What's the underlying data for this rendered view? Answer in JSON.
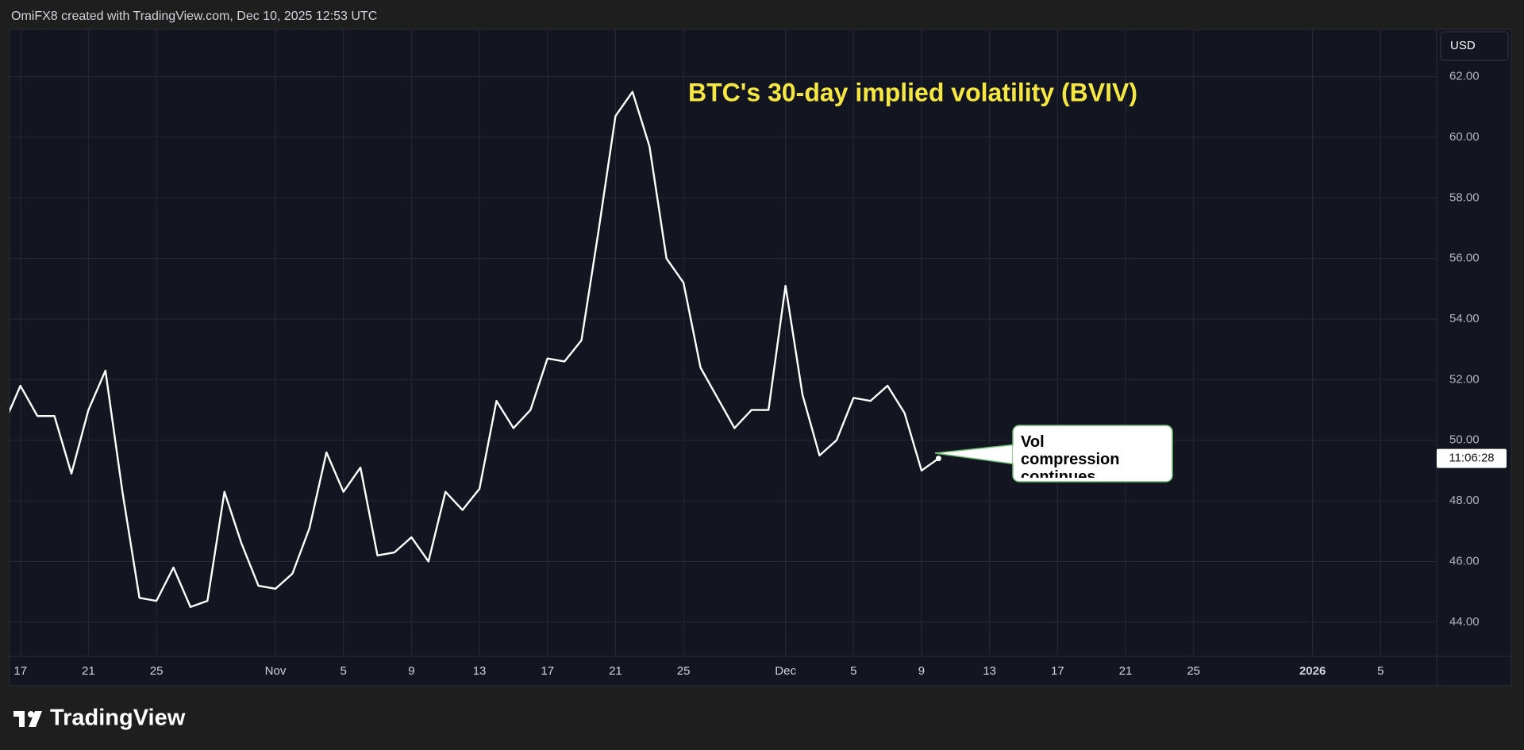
{
  "header": {
    "text": "OmiFX8 created with TradingView.com, Dec 10, 2025 12:53 UTC"
  },
  "footer": {
    "brand": "TradingView"
  },
  "chart_data": {
    "type": "line",
    "title": "BTC's 30-day implied volatility (BVIV)",
    "annotation": "Vol compression continues",
    "currency": "USD",
    "countdown": "11:06:28",
    "color": "#ffffff",
    "grid": true,
    "x": [
      "2025-10-16",
      "2025-10-17",
      "2025-10-18",
      "2025-10-19",
      "2025-10-20",
      "2025-10-21",
      "2025-10-22",
      "2025-10-23",
      "2025-10-24",
      "2025-10-25",
      "2025-10-26",
      "2025-10-27",
      "2025-10-28",
      "2025-10-29",
      "2025-10-30",
      "2025-10-31",
      "2025-11-01",
      "2025-11-02",
      "2025-11-03",
      "2025-11-04",
      "2025-11-05",
      "2025-11-06",
      "2025-11-07",
      "2025-11-08",
      "2025-11-09",
      "2025-11-10",
      "2025-11-11",
      "2025-11-12",
      "2025-11-13",
      "2025-11-14",
      "2025-11-15",
      "2025-11-16",
      "2025-11-17",
      "2025-11-18",
      "2025-11-19",
      "2025-11-20",
      "2025-11-21",
      "2025-11-22",
      "2025-11-23",
      "2025-11-24",
      "2025-11-25",
      "2025-11-26",
      "2025-11-27",
      "2025-11-28",
      "2025-11-29",
      "2025-11-30",
      "2025-12-01",
      "2025-12-02",
      "2025-12-03",
      "2025-12-04",
      "2025-12-05",
      "2025-12-06",
      "2025-12-07",
      "2025-12-08",
      "2025-12-09",
      "2025-12-10"
    ],
    "values": [
      50.5,
      51.8,
      50.8,
      50.8,
      48.9,
      51.0,
      52.3,
      48.3,
      44.8,
      44.7,
      45.8,
      44.5,
      44.7,
      48.3,
      46.6,
      45.2,
      45.1,
      45.6,
      47.1,
      49.6,
      48.3,
      49.1,
      46.2,
      46.3,
      46.8,
      46.0,
      48.3,
      47.7,
      48.4,
      51.3,
      50.4,
      51.0,
      52.7,
      52.6,
      53.3,
      56.9,
      60.7,
      61.5,
      59.7,
      56.0,
      55.2,
      52.4,
      51.4,
      50.4,
      51.0,
      51.0,
      55.1,
      51.5,
      49.5,
      50.0,
      51.4,
      51.3,
      51.8,
      50.9,
      49.0,
      49.4
    ],
    "xlim": [
      "2025-10-16",
      "2026-01-09"
    ],
    "xticks": [
      {
        "value": "2025-10-17",
        "label": "17"
      },
      {
        "value": "2025-10-21",
        "label": "21"
      },
      {
        "value": "2025-10-25",
        "label": "25"
      },
      {
        "value": "2025-11-01",
        "label": "Nov"
      },
      {
        "value": "2025-11-05",
        "label": "5"
      },
      {
        "value": "2025-11-09",
        "label": "9"
      },
      {
        "value": "2025-11-13",
        "label": "13"
      },
      {
        "value": "2025-11-17",
        "label": "17"
      },
      {
        "value": "2025-11-21",
        "label": "21"
      },
      {
        "value": "2025-11-25",
        "label": "25"
      },
      {
        "value": "2025-12-01",
        "label": "Dec"
      },
      {
        "value": "2025-12-05",
        "label": "5"
      },
      {
        "value": "2025-12-09",
        "label": "9"
      },
      {
        "value": "2025-12-13",
        "label": "13"
      },
      {
        "value": "2025-12-17",
        "label": "17"
      },
      {
        "value": "2025-12-21",
        "label": "21"
      },
      {
        "value": "2025-12-25",
        "label": "25"
      },
      {
        "value": "2026-01-01",
        "label": "2026"
      },
      {
        "value": "2026-01-05",
        "label": "5"
      }
    ],
    "ylim": [
      42.87,
      63.56
    ],
    "yticks": [
      {
        "value": 44,
        "label": "44.00"
      },
      {
        "value": 46,
        "label": "46.00"
      },
      {
        "value": 48,
        "label": "48.00"
      },
      {
        "value": 50,
        "label": "50.00"
      },
      {
        "value": 52,
        "label": "52.00"
      },
      {
        "value": 54,
        "label": "54.00"
      },
      {
        "value": 56,
        "label": "56.00"
      },
      {
        "value": 58,
        "label": "58.00"
      },
      {
        "value": 60,
        "label": "60.00"
      },
      {
        "value": 62,
        "label": "62.00"
      }
    ]
  }
}
